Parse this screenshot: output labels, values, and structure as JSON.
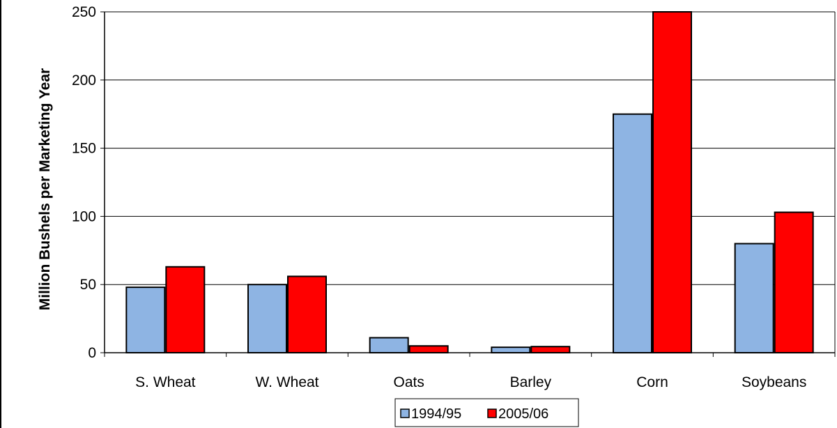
{
  "chart_data": {
    "type": "bar",
    "title": "",
    "xlabel": "",
    "ylabel": "Million Bushels per Marketing Year",
    "ylim": [
      0,
      250
    ],
    "yticks": [
      0,
      50,
      100,
      150,
      200,
      250
    ],
    "grid": true,
    "legend_position": "bottom",
    "categories": [
      "S. Wheat",
      "W. Wheat",
      "Oats",
      "Barley",
      "Corn",
      "Soybeans"
    ],
    "series": [
      {
        "name": "1994/95",
        "color": "#8eb4e3",
        "values": [
          48,
          50,
          11,
          4,
          175,
          80
        ]
      },
      {
        "name": "2005/06",
        "color": "#ff0000",
        "values": [
          63,
          56,
          5,
          4.5,
          250,
          103
        ]
      }
    ]
  }
}
